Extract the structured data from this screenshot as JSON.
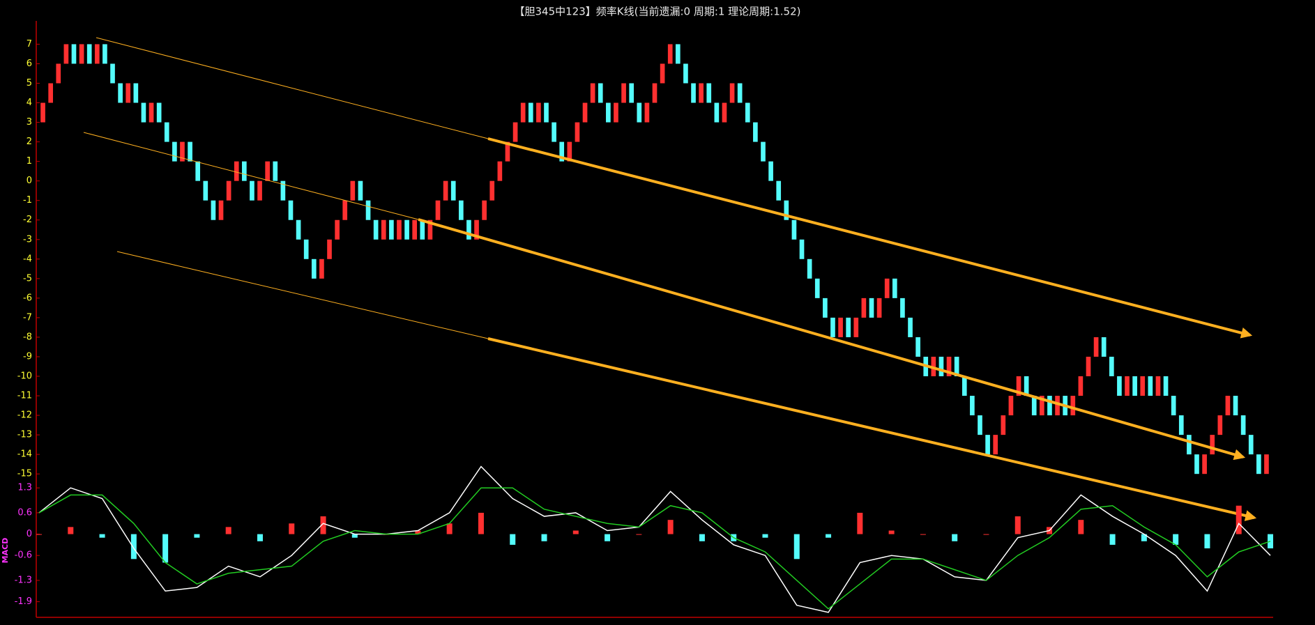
{
  "chart_data": [
    {
      "type": "candlestick",
      "title": "【胆345中123】频率K线(当前遗漏:0 周期:1 理论周期:1.52)",
      "ylim": [
        -15.6,
        7.8
      ],
      "yticks": [
        7,
        6,
        5,
        4,
        3,
        2,
        1,
        0,
        -1,
        -2,
        -3,
        -4,
        -5,
        -6,
        -7,
        -8,
        -9,
        -10,
        -11,
        -12,
        -13,
        -14,
        -15
      ],
      "up_color": "#ff3030",
      "down_color": "#54fcfc",
      "candles": {
        "open": [
          3,
          4,
          5,
          6,
          7,
          6,
          7,
          6,
          7,
          6,
          5,
          4,
          5,
          4,
          3,
          4,
          3,
          2,
          1,
          2,
          1,
          0,
          -1,
          -2,
          -1,
          0,
          1,
          0,
          -1,
          0,
          1,
          0,
          -1,
          -2,
          -3,
          -4,
          -5,
          -4,
          -3,
          -2,
          -1,
          0,
          -1,
          -2,
          -3,
          -2,
          -3,
          -2,
          -3,
          -2,
          -3,
          -2,
          -1,
          0,
          -1,
          -2,
          -3,
          -2,
          -1,
          0,
          1,
          2,
          3,
          4,
          3,
          4,
          3,
          2,
          1,
          2,
          3,
          4,
          5,
          4,
          3,
          4,
          5,
          4,
          3,
          4,
          5,
          6,
          7,
          6,
          5,
          4,
          5,
          4,
          3,
          4,
          5,
          4,
          3,
          2,
          1,
          0,
          -1,
          -2,
          -3,
          -4,
          -5,
          -6,
          -7,
          -8,
          -7,
          -8,
          -7,
          -6,
          -7,
          -6,
          -5,
          -6,
          -7,
          -8,
          -9,
          -10,
          -9,
          -10,
          -9,
          -10,
          -11,
          -12,
          -13,
          -14,
          -13,
          -12,
          -11,
          -10,
          -11,
          -12,
          -11,
          -12,
          -11,
          -12,
          -11,
          -10,
          -9,
          -8,
          -9,
          -10,
          -11,
          -10,
          -11,
          -10,
          -11,
          -10,
          -11,
          -12,
          -13,
          -14,
          -15,
          -14,
          -13,
          -12,
          -11,
          -12,
          -13,
          -14,
          -15
        ],
        "close": [
          4,
          5,
          6,
          7,
          6,
          7,
          6,
          7,
          6,
          5,
          4,
          5,
          4,
          3,
          4,
          3,
          2,
          1,
          2,
          1,
          0,
          -1,
          -2,
          -1,
          0,
          1,
          0,
          -1,
          0,
          1,
          0,
          -1,
          -2,
          -3,
          -4,
          -5,
          -4,
          -3,
          -2,
          -1,
          0,
          -1,
          -2,
          -3,
          -2,
          -3,
          -2,
          -3,
          -2,
          -3,
          -2,
          -1,
          0,
          -1,
          -2,
          -3,
          -2,
          -1,
          0,
          1,
          2,
          3,
          4,
          3,
          4,
          3,
          2,
          1,
          2,
          3,
          4,
          5,
          4,
          3,
          4,
          5,
          4,
          3,
          4,
          5,
          6,
          7,
          6,
          5,
          4,
          5,
          4,
          3,
          4,
          5,
          4,
          3,
          2,
          1,
          0,
          -1,
          -2,
          -3,
          -4,
          -5,
          -6,
          -7,
          -8,
          -7,
          -8,
          -7,
          -6,
          -7,
          -6,
          -5,
          -6,
          -7,
          -8,
          -9,
          -10,
          -9,
          -10,
          -9,
          -10,
          -11,
          -12,
          -13,
          -14,
          -13,
          -12,
          -11,
          -10,
          -11,
          -12,
          -11,
          -12,
          -11,
          -12,
          -11,
          -10,
          -9,
          -8,
          -9,
          -10,
          -11,
          -10,
          -11,
          -10,
          -11,
          -10,
          -11,
          -12,
          -13,
          -14,
          -15,
          -14,
          -13,
          -12,
          -11,
          -12,
          -13,
          -14,
          -15,
          -14
        ]
      }
    },
    {
      "type": "macd",
      "ylabel": "MACD",
      "ylim": [
        -2.3,
        1.5
      ],
      "yticks": [
        1.3,
        0.6,
        0,
        -0.6,
        -1.3,
        -1.9
      ],
      "series": [
        {
          "color": "#ffffff",
          "values": [
            0.6,
            1.3,
            1.0,
            -0.4,
            -1.6,
            -1.5,
            -0.9,
            -1.2,
            -0.6,
            0.3,
            0,
            0,
            0.1,
            0.6,
            1.9,
            1.0,
            0.5,
            0.6,
            0.1,
            0.2,
            1.2,
            0.4,
            -0.3,
            -0.6,
            -2.0,
            -2.2,
            -0.8,
            -0.6,
            -0.7,
            -1.2,
            -1.3,
            -0.1,
            0.1,
            1.1,
            0.5,
            0,
            -0.6,
            -1.6,
            0.3,
            -0.6
          ]
        },
        {
          "color": "#22cc22",
          "values": [
            0.6,
            1.1,
            1.1,
            0.3,
            -0.8,
            -1.4,
            -1.1,
            -1.0,
            -0.9,
            -0.2,
            0.1,
            0,
            0,
            0.3,
            1.3,
            1.3,
            0.7,
            0.5,
            0.3,
            0.2,
            0.8,
            0.6,
            -0.1,
            -0.5,
            -1.3,
            -2.1,
            -1.4,
            -0.7,
            -0.7,
            -1.0,
            -1.3,
            -0.6,
            -0.1,
            0.7,
            0.8,
            0.2,
            -0.3,
            -1.2,
            -0.5,
            -0.2
          ]
        }
      ],
      "histogram": {
        "pos_color": "#ff3030",
        "neg_color": "#54fcfc",
        "values": [
          0,
          0.2,
          -0.1,
          -0.7,
          -0.8,
          -0.1,
          0.2,
          -0.2,
          0.3,
          0.5,
          -0.1,
          0,
          0.1,
          0.3,
          0.6,
          -0.3,
          -0.2,
          0.1,
          -0.2,
          0,
          0.4,
          -0.2,
          -0.2,
          -0.1,
          -0.7,
          -0.1,
          0.6,
          0.1,
          0,
          -0.2,
          0,
          0.5,
          0.2,
          0.4,
          -0.3,
          -0.2,
          -0.3,
          -0.4,
          0.8,
          -0.4
        ]
      }
    }
  ]
}
